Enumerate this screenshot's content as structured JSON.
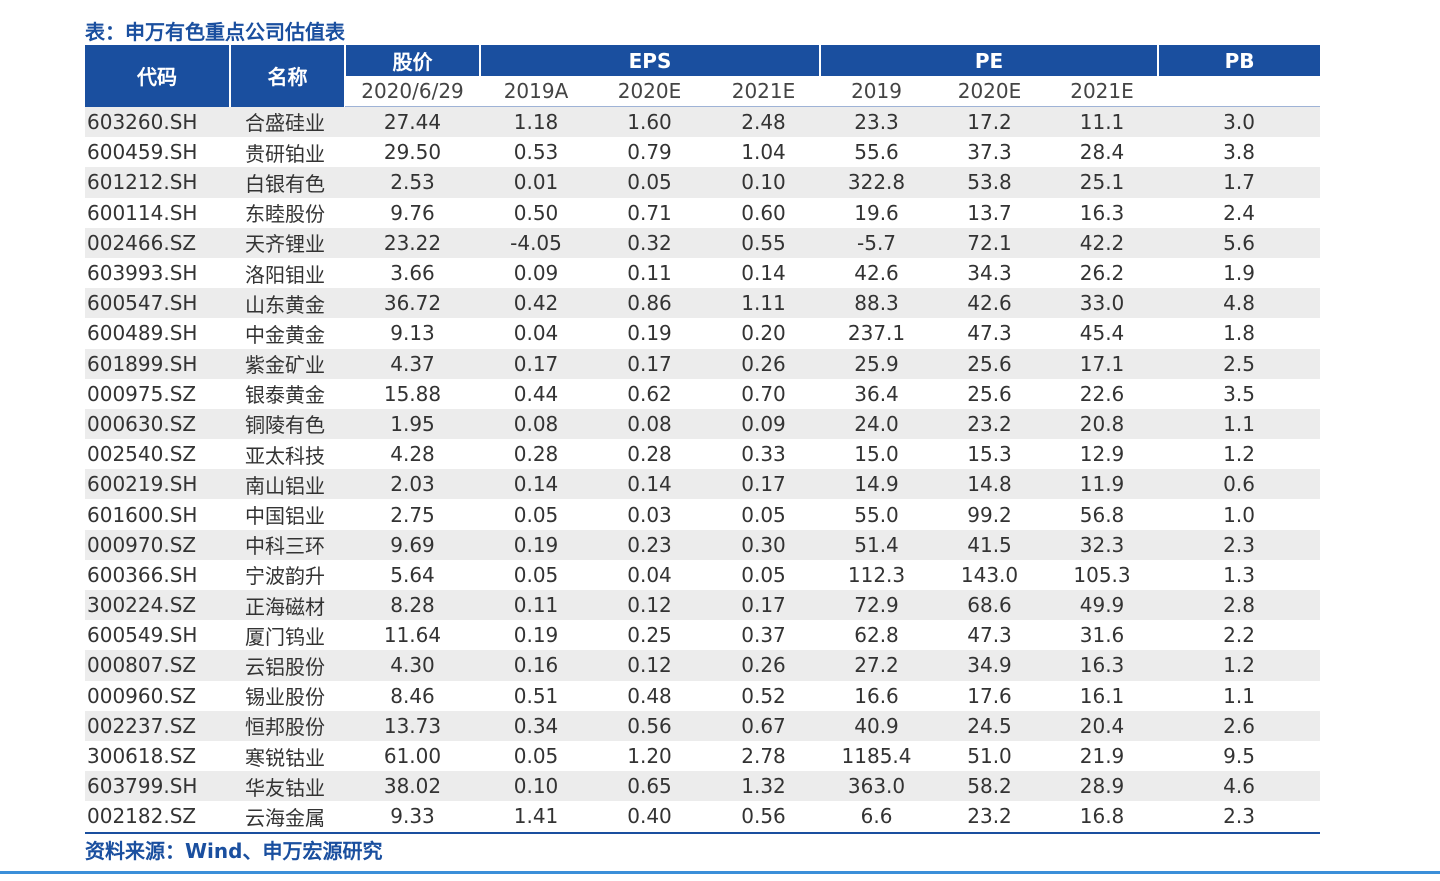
{
  "title": "表：申万有色重点公司估值表",
  "header": {
    "code": "代码",
    "name": "名称",
    "groups": [
      {
        "label": "股价",
        "sub": [
          "2020/6/29"
        ]
      },
      {
        "label": "EPS",
        "sub": [
          "2019A",
          "2020E",
          "2021E"
        ]
      },
      {
        "label": "PE",
        "sub": [
          "2019",
          "2020E",
          "2021E"
        ]
      },
      {
        "label": "PB",
        "sub": []
      }
    ]
  },
  "rows": [
    [
      "603260.SH",
      "合盛硅业",
      "27.44",
      "1.18",
      "1.60",
      "2.48",
      "23.3",
      "17.2",
      "11.1",
      "3.0"
    ],
    [
      "600459.SH",
      "贵研铂业",
      "29.50",
      "0.53",
      "0.79",
      "1.04",
      "55.6",
      "37.3",
      "28.4",
      "3.8"
    ],
    [
      "601212.SH",
      "白银有色",
      "2.53",
      "0.01",
      "0.05",
      "0.10",
      "322.8",
      "53.8",
      "25.1",
      "1.7"
    ],
    [
      "600114.SH",
      "东睦股份",
      "9.76",
      "0.50",
      "0.71",
      "0.60",
      "19.6",
      "13.7",
      "16.3",
      "2.4"
    ],
    [
      "002466.SZ",
      "天齐锂业",
      "23.22",
      "-4.05",
      "0.32",
      "0.55",
      "-5.7",
      "72.1",
      "42.2",
      "5.6"
    ],
    [
      "603993.SH",
      "洛阳钼业",
      "3.66",
      "0.09",
      "0.11",
      "0.14",
      "42.6",
      "34.3",
      "26.2",
      "1.9"
    ],
    [
      "600547.SH",
      "山东黄金",
      "36.72",
      "0.42",
      "0.86",
      "1.11",
      "88.3",
      "42.6",
      "33.0",
      "4.8"
    ],
    [
      "600489.SH",
      "中金黄金",
      "9.13",
      "0.04",
      "0.19",
      "0.20",
      "237.1",
      "47.3",
      "45.4",
      "1.8"
    ],
    [
      "601899.SH",
      "紫金矿业",
      "4.37",
      "0.17",
      "0.17",
      "0.26",
      "25.9",
      "25.6",
      "17.1",
      "2.5"
    ],
    [
      "000975.SZ",
      "银泰黄金",
      "15.88",
      "0.44",
      "0.62",
      "0.70",
      "36.4",
      "25.6",
      "22.6",
      "3.5"
    ],
    [
      "000630.SZ",
      "铜陵有色",
      "1.95",
      "0.08",
      "0.08",
      "0.09",
      "24.0",
      "23.2",
      "20.8",
      "1.1"
    ],
    [
      "002540.SZ",
      "亚太科技",
      "4.28",
      "0.28",
      "0.28",
      "0.33",
      "15.0",
      "15.3",
      "12.9",
      "1.2"
    ],
    [
      "600219.SH",
      "南山铝业",
      "2.03",
      "0.14",
      "0.14",
      "0.17",
      "14.9",
      "14.8",
      "11.9",
      "0.6"
    ],
    [
      "601600.SH",
      "中国铝业",
      "2.75",
      "0.05",
      "0.03",
      "0.05",
      "55.0",
      "99.2",
      "56.8",
      "1.0"
    ],
    [
      "000970.SZ",
      "中科三环",
      "9.69",
      "0.19",
      "0.23",
      "0.30",
      "51.4",
      "41.5",
      "32.3",
      "2.3"
    ],
    [
      "600366.SH",
      "宁波韵升",
      "5.64",
      "0.05",
      "0.04",
      "0.05",
      "112.3",
      "143.0",
      "105.3",
      "1.3"
    ],
    [
      "300224.SZ",
      "正海磁材",
      "8.28",
      "0.11",
      "0.12",
      "0.17",
      "72.9",
      "68.6",
      "49.9",
      "2.8"
    ],
    [
      "600549.SH",
      "厦门钨业",
      "11.64",
      "0.19",
      "0.25",
      "0.37",
      "62.8",
      "47.3",
      "31.6",
      "2.2"
    ],
    [
      "000807.SZ",
      "云铝股份",
      "4.30",
      "0.16",
      "0.12",
      "0.26",
      "27.2",
      "34.9",
      "16.3",
      "1.2"
    ],
    [
      "000960.SZ",
      "锡业股份",
      "8.46",
      "0.51",
      "0.48",
      "0.52",
      "16.6",
      "17.6",
      "16.1",
      "1.1"
    ],
    [
      "002237.SZ",
      "恒邦股份",
      "13.73",
      "0.34",
      "0.56",
      "0.67",
      "40.9",
      "24.5",
      "20.4",
      "2.6"
    ],
    [
      "300618.SZ",
      "寒锐钴业",
      "61.00",
      "0.05",
      "1.20",
      "2.78",
      "1185.4",
      "51.0",
      "21.9",
      "9.5"
    ],
    [
      "603799.SH",
      "华友钴业",
      "38.02",
      "0.10",
      "0.65",
      "1.32",
      "363.0",
      "58.2",
      "28.9",
      "4.6"
    ],
    [
      "002182.SZ",
      "云海金属",
      "9.33",
      "1.41",
      "0.40",
      "0.56",
      "6.6",
      "23.2",
      "16.8",
      "2.3"
    ]
  ],
  "source": "资料来源：Wind、申万宏源研究"
}
